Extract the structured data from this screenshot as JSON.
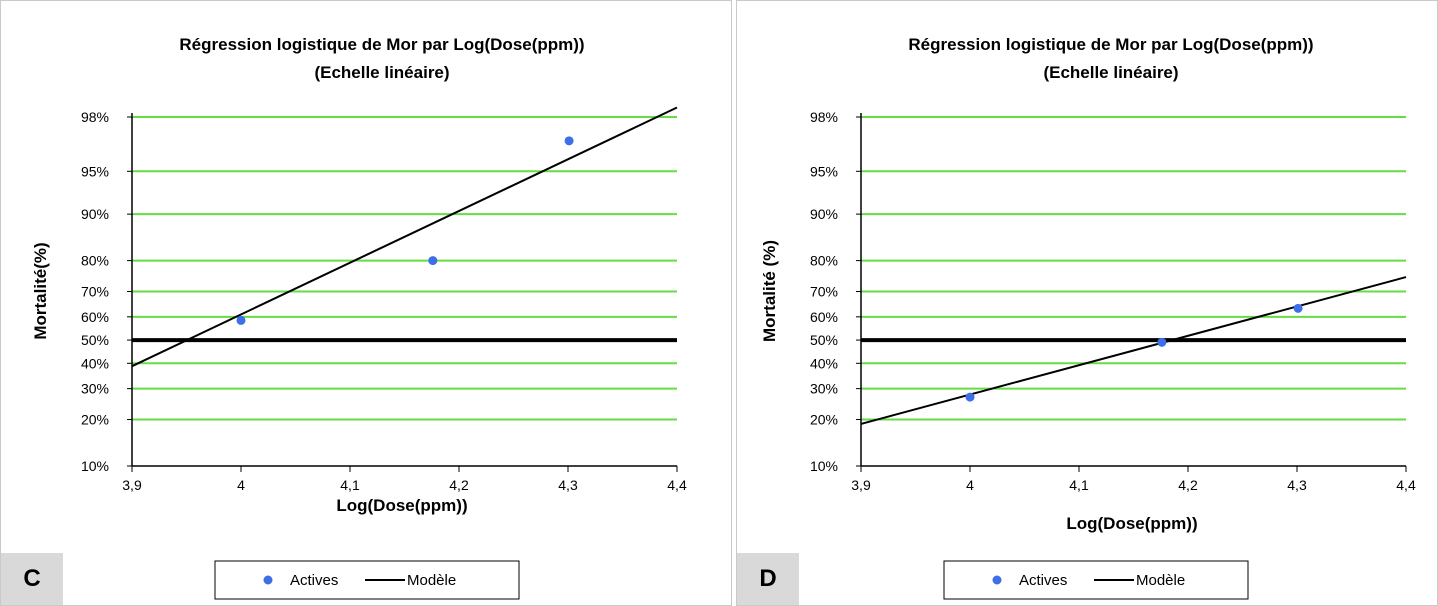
{
  "chart_data": [
    {
      "type": "scatter",
      "panel_label": "C",
      "title": "Régression logistique de Mor par Log(Dose(ppm))",
      "subtitle": "(Echelle linéaire)",
      "xlabel": "Log(Dose(ppm))",
      "ylabel": "Mortalité(%)",
      "xlim": [
        3.9,
        4.4
      ],
      "x_ticks": [
        3.9,
        4.0,
        4.1,
        4.2,
        4.3,
        4.4
      ],
      "x_tick_labels": [
        "3,9",
        "4",
        "4,1",
        "4,2",
        "4,3",
        "4,4"
      ],
      "y_scale": "logit",
      "y_ticks": [
        10,
        20,
        30,
        40,
        50,
        60,
        70,
        80,
        90,
        95,
        98
      ],
      "y_tick_labels": [
        "10%",
        "20%",
        "30%",
        "40%",
        "50%",
        "60%",
        "70%",
        "80%",
        "90%",
        "95%",
        "98%"
      ],
      "grid": true,
      "reference_line": 50,
      "series": [
        {
          "name": "Actives",
          "kind": "points",
          "x": [
            4.0,
            4.176,
            4.301
          ],
          "y": [
            58.5,
            80.0,
            97.0
          ]
        },
        {
          "name": "Modèle",
          "kind": "line",
          "x": [
            3.9,
            4.4
          ],
          "y": [
            38.8,
            98.3
          ]
        }
      ],
      "legend": [
        "Actives",
        "Modèle"
      ],
      "legend_position": "bottom",
      "colors": {
        "points": "#3c6fe8",
        "line": "#000000",
        "grid": "#66dd44",
        "reference": "#000000"
      }
    },
    {
      "type": "scatter",
      "panel_label": "D",
      "title": "Régression logistique de Mor par Log(Dose(ppm))",
      "subtitle": "(Echelle linéaire)",
      "xlabel": "Log(Dose(ppm))",
      "ylabel": "Mortalité (%)",
      "xlim": [
        3.9,
        4.4
      ],
      "x_ticks": [
        3.9,
        4.0,
        4.1,
        4.2,
        4.3,
        4.4
      ],
      "x_tick_labels": [
        "3,9",
        "4",
        "4,1",
        "4,2",
        "4,3",
        "4,4"
      ],
      "y_scale": "logit",
      "y_ticks": [
        10,
        20,
        30,
        40,
        50,
        60,
        70,
        80,
        90,
        95,
        98
      ],
      "y_tick_labels": [
        "10%",
        "20%",
        "30%",
        "40%",
        "50%",
        "60%",
        "70%",
        "80%",
        "90%",
        "95%",
        "98%"
      ],
      "grid": true,
      "reference_line": 50,
      "series": [
        {
          "name": "Actives",
          "kind": "points",
          "x": [
            4.0,
            4.176,
            4.301
          ],
          "y": [
            27.0,
            49.0,
            63.5
          ]
        },
        {
          "name": "Modèle",
          "kind": "line",
          "x": [
            3.9,
            4.4
          ],
          "y": [
            18.8,
            75.0
          ]
        }
      ],
      "legend": [
        "Actives",
        "Modèle"
      ],
      "legend_position": "bottom",
      "colors": {
        "points": "#3c6fe8",
        "line": "#000000",
        "grid": "#66dd44",
        "reference": "#000000"
      }
    }
  ]
}
